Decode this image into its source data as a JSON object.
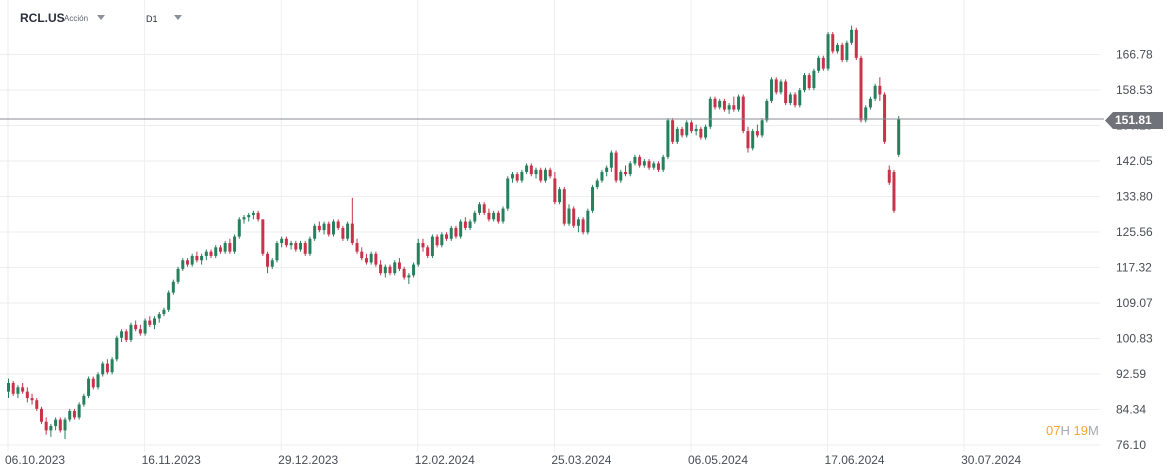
{
  "header": {
    "symbol": "RCL.US",
    "symbol_type": "Acción",
    "timeframe": "D1"
  },
  "countdown": {
    "hours": "07",
    "hours_unit": "H",
    "minutes": "19",
    "minutes_unit": "M"
  },
  "colors": {
    "up": "#26805e",
    "down": "#c8334a",
    "grid": "#edeef0",
    "price_line": "#8a8d93",
    "price_tag": "#6f7278",
    "axis_text": "#4a4d55"
  },
  "chart_data": {
    "type": "candlestick",
    "title": "",
    "ylim": [
      76.1,
      175.0
    ],
    "y_ticks": [
      76.1,
      84.34,
      92.59,
      100.83,
      109.07,
      117.32,
      125.56,
      133.8,
      142.05,
      150.29,
      158.53,
      166.78
    ],
    "y_tick_labels": [
      "76.10",
      "84.34",
      "92.59",
      "100.83",
      "109.07",
      "117.32",
      "125.56",
      "133.80",
      "142.05",
      "150.29",
      "158.53",
      "166.78"
    ],
    "x_ticks": [
      {
        "index": 0,
        "label": "06.10.2023"
      },
      {
        "index": 29,
        "label": "16.11.2023"
      },
      {
        "index": 58,
        "label": "29.12.2023"
      },
      {
        "index": 87,
        "label": "12.02.2024"
      },
      {
        "index": 116,
        "label": "25.03.2024"
      },
      {
        "index": 145,
        "label": "06.05.2024"
      },
      {
        "index": 174,
        "label": "17.06.2024"
      },
      {
        "index": 203,
        "label": "30.07.2024"
      }
    ],
    "current_price": 151.81,
    "current_price_label": "151.81",
    "grid": true,
    "legend": "none",
    "candles": [
      [
        88.5,
        91.5,
        87.0,
        90.5
      ],
      [
        90.5,
        91.0,
        87.5,
        88.0
      ],
      [
        88.0,
        90.0,
        87.0,
        89.5
      ],
      [
        89.5,
        90.5,
        88.0,
        88.5
      ],
      [
        88.5,
        89.5,
        86.0,
        87.0
      ],
      [
        87.0,
        88.0,
        85.5,
        86.5
      ],
      [
        86.5,
        87.0,
        84.0,
        84.5
      ],
      [
        84.5,
        85.0,
        81.0,
        81.5
      ],
      [
        81.5,
        82.5,
        78.5,
        79.5
      ],
      [
        79.5,
        81.0,
        78.0,
        80.5
      ],
      [
        80.5,
        82.5,
        79.5,
        82.0
      ],
      [
        82.0,
        82.5,
        79.0,
        79.5
      ],
      [
        79.5,
        82.5,
        77.5,
        82.0
      ],
      [
        82.0,
        84.5,
        81.5,
        84.0
      ],
      [
        84.0,
        84.5,
        82.0,
        82.5
      ],
      [
        82.5,
        86.0,
        82.0,
        85.5
      ],
      [
        85.5,
        88.0,
        85.0,
        87.5
      ],
      [
        87.5,
        92.0,
        87.0,
        91.5
      ],
      [
        91.5,
        92.0,
        89.0,
        89.5
      ],
      [
        89.5,
        93.0,
        89.0,
        92.5
      ],
      [
        92.5,
        95.5,
        92.0,
        95.0
      ],
      [
        95.0,
        96.0,
        92.5,
        93.0
      ],
      [
        93.0,
        96.5,
        92.5,
        96.0
      ],
      [
        96.0,
        101.5,
        95.5,
        101.0
      ],
      [
        101.0,
        103.0,
        100.0,
        102.5
      ],
      [
        102.5,
        103.0,
        100.0,
        100.5
      ],
      [
        100.5,
        104.5,
        100.0,
        104.0
      ],
      [
        104.0,
        105.0,
        102.5,
        103.0
      ],
      [
        103.0,
        104.0,
        101.5,
        102.0
      ],
      [
        102.0,
        105.5,
        101.5,
        105.0
      ],
      [
        105.0,
        106.0,
        103.5,
        104.0
      ],
      [
        104.0,
        106.0,
        103.0,
        105.5
      ],
      [
        105.5,
        107.0,
        104.5,
        106.5
      ],
      [
        106.5,
        108.0,
        106.0,
        107.5
      ],
      [
        107.5,
        112.0,
        107.0,
        111.5
      ],
      [
        111.5,
        114.5,
        111.0,
        114.0
      ],
      [
        114.0,
        117.5,
        113.5,
        117.0
      ],
      [
        117.0,
        119.5,
        116.5,
        119.0
      ],
      [
        119.0,
        119.5,
        117.5,
        118.0
      ],
      [
        118.0,
        120.5,
        117.5,
        120.0
      ],
      [
        120.0,
        121.0,
        118.5,
        119.0
      ],
      [
        119.0,
        120.5,
        118.0,
        120.0
      ],
      [
        120.0,
        121.5,
        119.0,
        121.0
      ],
      [
        121.0,
        121.5,
        119.5,
        120.0
      ],
      [
        120.0,
        122.5,
        119.5,
        122.0
      ],
      [
        122.0,
        122.5,
        120.5,
        121.0
      ],
      [
        121.0,
        123.5,
        120.5,
        123.0
      ],
      [
        123.0,
        124.0,
        120.5,
        121.0
      ],
      [
        121.0,
        125.0,
        120.5,
        124.5
      ],
      [
        124.5,
        129.0,
        124.0,
        128.5
      ],
      [
        128.5,
        129.5,
        127.5,
        129.0
      ],
      [
        129.0,
        130.0,
        128.0,
        129.5
      ],
      [
        129.5,
        130.5,
        128.5,
        130.0
      ],
      [
        130.0,
        130.5,
        128.0,
        128.5
      ],
      [
        128.5,
        128.5,
        120.0,
        120.5
      ],
      [
        120.5,
        121.0,
        116.0,
        117.5
      ],
      [
        117.5,
        119.5,
        117.0,
        119.0
      ],
      [
        119.0,
        123.5,
        118.5,
        123.0
      ],
      [
        123.0,
        124.5,
        122.0,
        124.0
      ],
      [
        124.0,
        124.5,
        122.0,
        122.5
      ],
      [
        122.5,
        123.5,
        121.5,
        123.0
      ],
      [
        123.0,
        123.5,
        121.0,
        121.5
      ],
      [
        121.5,
        123.5,
        121.0,
        123.0
      ],
      [
        123.0,
        123.5,
        120.0,
        120.5
      ],
      [
        120.5,
        124.5,
        120.0,
        124.0
      ],
      [
        124.0,
        127.5,
        123.5,
        127.0
      ],
      [
        127.0,
        128.0,
        125.5,
        126.0
      ],
      [
        126.0,
        128.0,
        125.0,
        127.5
      ],
      [
        127.5,
        128.0,
        124.5,
        125.0
      ],
      [
        125.0,
        128.5,
        124.5,
        128.0
      ],
      [
        128.0,
        128.5,
        126.0,
        126.5
      ],
      [
        126.5,
        127.0,
        123.5,
        124.0
      ],
      [
        124.0,
        128.0,
        123.5,
        127.5
      ],
      [
        127.5,
        133.5,
        122.5,
        123.0
      ],
      [
        123.0,
        124.0,
        120.5,
        121.0
      ],
      [
        121.0,
        122.0,
        119.0,
        119.5
      ],
      [
        119.5,
        120.5,
        118.0,
        118.5
      ],
      [
        118.5,
        121.0,
        118.0,
        120.5
      ],
      [
        120.5,
        121.0,
        117.5,
        118.0
      ],
      [
        118.0,
        119.0,
        115.5,
        116.0
      ],
      [
        116.0,
        118.0,
        115.0,
        117.5
      ],
      [
        117.5,
        118.0,
        115.5,
        116.0
      ],
      [
        116.0,
        119.0,
        115.5,
        118.5
      ],
      [
        118.5,
        119.5,
        116.5,
        117.0
      ],
      [
        117.0,
        117.5,
        114.5,
        115.0
      ],
      [
        115.0,
        116.0,
        113.5,
        115.5
      ],
      [
        115.5,
        118.5,
        115.0,
        118.0
      ],
      [
        118.0,
        124.0,
        117.5,
        123.0
      ],
      [
        123.0,
        124.0,
        121.0,
        122.0
      ],
      [
        122.0,
        122.5,
        119.5,
        120.0
      ],
      [
        120.0,
        125.0,
        119.5,
        124.5
      ],
      [
        124.5,
        125.0,
        122.0,
        122.5
      ],
      [
        122.5,
        125.5,
        122.0,
        125.0
      ],
      [
        125.0,
        125.5,
        123.5,
        124.0
      ],
      [
        124.0,
        127.0,
        123.5,
        126.5
      ],
      [
        126.5,
        127.0,
        124.0,
        124.5
      ],
      [
        124.5,
        128.5,
        124.0,
        128.0
      ],
      [
        128.0,
        129.0,
        126.0,
        126.5
      ],
      [
        126.5,
        128.5,
        126.0,
        128.0
      ],
      [
        128.0,
        130.5,
        127.5,
        130.0
      ],
      [
        130.0,
        132.5,
        129.5,
        132.0
      ],
      [
        132.0,
        132.5,
        129.5,
        130.0
      ],
      [
        130.0,
        131.0,
        128.0,
        128.5
      ],
      [
        128.5,
        130.5,
        128.0,
        130.0
      ],
      [
        130.0,
        130.5,
        127.5,
        128.0
      ],
      [
        128.0,
        131.5,
        127.5,
        131.0
      ],
      [
        131.0,
        138.5,
        130.5,
        138.0
      ],
      [
        138.0,
        139.5,
        137.0,
        139.0
      ],
      [
        139.0,
        139.5,
        137.0,
        137.5
      ],
      [
        137.5,
        140.0,
        137.0,
        139.5
      ],
      [
        139.5,
        141.5,
        139.0,
        141.0
      ],
      [
        141.0,
        141.5,
        138.5,
        139.0
      ],
      [
        139.0,
        140.5,
        138.0,
        140.0
      ],
      [
        140.0,
        140.5,
        137.0,
        137.5
      ],
      [
        137.5,
        140.5,
        137.0,
        140.0
      ],
      [
        140.0,
        140.5,
        138.0,
        138.5
      ],
      [
        138.0,
        139.5,
        132.0,
        132.5
      ],
      [
        132.5,
        136.0,
        132.0,
        135.5
      ],
      [
        135.5,
        136.0,
        127.0,
        127.5
      ],
      [
        127.5,
        132.0,
        127.0,
        131.0
      ],
      [
        131.0,
        131.5,
        126.5,
        127.0
      ],
      [
        127.0,
        129.0,
        125.5,
        128.5
      ],
      [
        128.5,
        129.0,
        125.0,
        125.5
      ],
      [
        125.5,
        131.0,
        125.0,
        130.5
      ],
      [
        130.5,
        136.5,
        130.0,
        136.0
      ],
      [
        136.0,
        138.0,
        135.5,
        137.5
      ],
      [
        137.5,
        140.0,
        137.0,
        139.5
      ],
      [
        139.5,
        141.0,
        138.5,
        140.5
      ],
      [
        140.5,
        144.5,
        139.5,
        144.0
      ],
      [
        144.0,
        144.5,
        137.0,
        137.5
      ],
      [
        137.5,
        140.0,
        137.0,
        139.5
      ],
      [
        139.5,
        141.0,
        138.5,
        139.0
      ],
      [
        139.0,
        142.0,
        138.5,
        141.5
      ],
      [
        141.5,
        143.5,
        141.0,
        143.0
      ],
      [
        143.0,
        143.5,
        140.5,
        141.0
      ],
      [
        141.0,
        142.5,
        140.5,
        142.0
      ],
      [
        142.0,
        142.5,
        140.0,
        140.5
      ],
      [
        140.5,
        142.0,
        140.0,
        141.5
      ],
      [
        141.5,
        142.0,
        139.5,
        140.0
      ],
      [
        140.0,
        143.5,
        139.5,
        143.0
      ],
      [
        143.0,
        152.0,
        142.5,
        151.5
      ],
      [
        151.5,
        152.0,
        146.0,
        146.5
      ],
      [
        146.5,
        150.0,
        146.0,
        149.5
      ],
      [
        149.5,
        150.0,
        147.5,
        148.0
      ],
      [
        148.0,
        151.5,
        147.5,
        151.0
      ],
      [
        151.0,
        151.5,
        148.5,
        149.0
      ],
      [
        149.0,
        150.5,
        148.0,
        149.5
      ],
      [
        149.5,
        150.0,
        147.0,
        147.5
      ],
      [
        147.5,
        150.5,
        147.0,
        150.0
      ],
      [
        150.0,
        157.0,
        149.5,
        156.5
      ],
      [
        156.5,
        157.0,
        154.0,
        154.5
      ],
      [
        154.5,
        156.5,
        154.0,
        156.0
      ],
      [
        156.0,
        156.5,
        153.5,
        154.0
      ],
      [
        154.0,
        155.5,
        153.0,
        155.0
      ],
      [
        155.0,
        157.0,
        153.5,
        154.0
      ],
      [
        154.0,
        157.5,
        153.5,
        157.0
      ],
      [
        157.0,
        157.5,
        148.5,
        149.0
      ],
      [
        149.0,
        150.0,
        144.0,
        145.0
      ],
      [
        145.0,
        149.5,
        144.5,
        149.0
      ],
      [
        149.0,
        150.5,
        147.5,
        148.0
      ],
      [
        148.0,
        152.0,
        147.5,
        151.5
      ],
      [
        151.5,
        156.5,
        151.0,
        156.0
      ],
      [
        156.0,
        161.5,
        155.5,
        161.0
      ],
      [
        161.0,
        161.5,
        157.5,
        158.0
      ],
      [
        158.0,
        161.0,
        157.5,
        160.5
      ],
      [
        160.5,
        161.0,
        155.0,
        155.5
      ],
      [
        155.5,
        158.0,
        155.0,
        157.5
      ],
      [
        157.5,
        158.0,
        154.5,
        155.0
      ],
      [
        155.0,
        159.0,
        154.5,
        158.5
      ],
      [
        158.5,
        162.5,
        158.0,
        162.0
      ],
      [
        162.0,
        162.5,
        158.5,
        159.0
      ],
      [
        159.0,
        163.5,
        158.5,
        163.0
      ],
      [
        163.0,
        166.5,
        162.5,
        166.0
      ],
      [
        166.0,
        166.5,
        163.0,
        163.5
      ],
      [
        163.5,
        172.0,
        163.0,
        171.5
      ],
      [
        171.5,
        172.0,
        167.0,
        167.5
      ],
      [
        167.5,
        169.5,
        167.0,
        169.0
      ],
      [
        169.0,
        169.5,
        165.0,
        165.5
      ],
      [
        165.5,
        170.0,
        165.0,
        169.5
      ],
      [
        169.5,
        173.5,
        169.0,
        172.5
      ],
      [
        172.5,
        173.0,
        165.5,
        166.0
      ],
      [
        166.0,
        166.5,
        151.0,
        151.5
      ],
      [
        151.5,
        155.0,
        151.0,
        154.5
      ],
      [
        154.5,
        157.0,
        154.0,
        156.5
      ],
      [
        156.5,
        160.0,
        156.0,
        159.5
      ],
      [
        159.5,
        161.5,
        156.0,
        157.5
      ],
      [
        157.5,
        158.0,
        146.0,
        146.5
      ],
      [
        140.0,
        141.0,
        136.5,
        137.0
      ],
      [
        139.5,
        140.0,
        130.0,
        130.5
      ],
      [
        143.5,
        152.5,
        143.0,
        151.8
      ]
    ]
  }
}
